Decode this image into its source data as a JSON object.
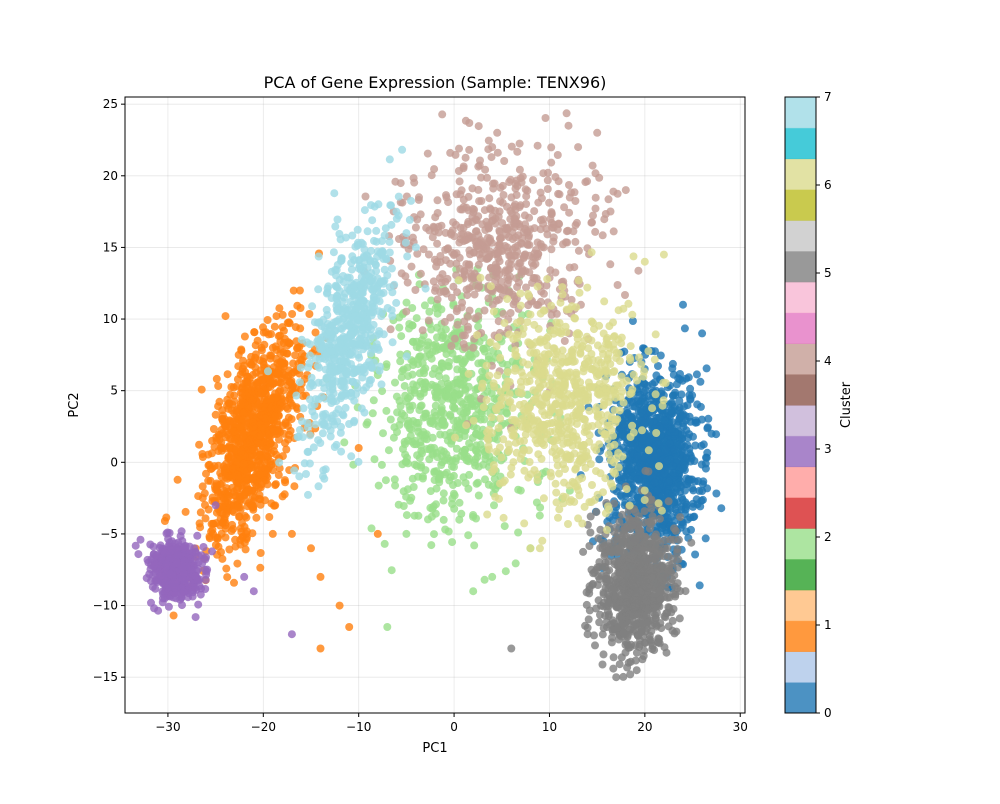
{
  "chart_data": {
    "type": "scatter",
    "title": "PCA of Gene Expression (Sample: TENX96)",
    "xlabel": "PC1",
    "ylabel": "PC2",
    "xlim": [
      -34.5,
      30.5
    ],
    "ylim": [
      -17.5,
      25.5
    ],
    "xticks": [
      -30,
      -20,
      -10,
      0,
      10,
      20,
      30
    ],
    "yticks": [
      -15,
      -10,
      -5,
      0,
      5,
      10,
      15,
      20,
      25
    ],
    "grid": true,
    "colorbar": {
      "label": "Cluster",
      "ticks": [
        0,
        1,
        2,
        3,
        4,
        5,
        6,
        7
      ],
      "colors": [
        "#1f77b4",
        "#aec7e8",
        "#ff7f0e",
        "#ffbb78",
        "#2ca02c",
        "#98df8a",
        "#d62728",
        "#ff9896",
        "#9467bd",
        "#c5b0d5",
        "#8c564b",
        "#c49c94",
        "#e377c2",
        "#f7b6d2",
        "#7f7f7f",
        "#c7c7c7",
        "#bcbd22",
        "#dbdb8d",
        "#17becf",
        "#9edae5"
      ]
    },
    "series": [
      {
        "cluster": 0,
        "color": "#1f77b4",
        "count": 1100,
        "center": [
          21,
          0
        ],
        "spread": [
          2.3,
          3.2
        ],
        "outliers": [
          [
            24,
            11
          ],
          [
            26,
            9
          ],
          [
            27,
            2
          ],
          [
            26,
            -2
          ],
          [
            16,
            -3
          ]
        ]
      },
      {
        "cluster": 1,
        "color": "#ff7f0e",
        "count": 1000,
        "center": [
          -21,
          2
        ],
        "spread": [
          2.6,
          3.0
        ],
        "outliers": [
          [
            -14,
            -8
          ],
          [
            -12,
            -10
          ],
          [
            -14,
            -13
          ],
          [
            -11,
            -11.5
          ],
          [
            -8,
            -5
          ],
          [
            -10,
            1
          ],
          [
            -17,
            -5
          ],
          [
            -15,
            -6
          ],
          [
            -19,
            -5
          ]
        ]
      },
      {
        "cluster": 2,
        "color": "#98df8a",
        "count": 700,
        "center": [
          0,
          4
        ],
        "spread": [
          4.2,
          4.0
        ],
        "outliers": [
          [
            -7,
            -11.5
          ],
          [
            8,
            -6
          ],
          [
            -5,
            -5
          ],
          [
            2,
            -9
          ],
          [
            4,
            -8
          ]
        ]
      },
      {
        "cluster": 3,
        "color": "#9467bd",
        "count": 500,
        "center": [
          -29,
          -7.5
        ],
        "spread": [
          1.3,
          1.0
        ],
        "outliers": [
          [
            -17,
            -12
          ],
          [
            -22,
            -8
          ],
          [
            -21,
            -9
          ],
          [
            -25,
            -3
          ]
        ]
      },
      {
        "cluster": 4,
        "color": "#c49c94",
        "count": 600,
        "center": [
          5,
          15
        ],
        "spread": [
          5.0,
          3.5
        ],
        "outliers": [
          [
            12,
            23.5
          ],
          [
            13,
            22
          ],
          [
            4,
            22
          ],
          [
            15,
            23
          ],
          [
            18,
            19
          ]
        ]
      },
      {
        "cluster": 5,
        "color": "#7f7f7f",
        "count": 900,
        "center": [
          19,
          -8.5
        ],
        "spread": [
          2.0,
          2.3
        ],
        "outliers": [
          [
            6,
            -13
          ],
          [
            17,
            -15
          ],
          [
            14,
            -12
          ]
        ]
      },
      {
        "cluster": 6,
        "color": "#dbdb8d",
        "count": 700,
        "center": [
          12,
          4
        ],
        "spread": [
          4.0,
          3.6
        ],
        "outliers": [
          [
            20,
            14
          ],
          [
            22,
            14.5
          ],
          [
            9,
            -6
          ],
          [
            8,
            -6
          ]
        ]
      },
      {
        "cluster": 7,
        "color": "#9edae5",
        "count": 600,
        "center": [
          -11,
          9
        ],
        "spread": [
          2.5,
          3.2
        ],
        "outliers": [
          [
            -6,
            17
          ],
          [
            -4,
            15
          ],
          [
            -5,
            16
          ]
        ]
      }
    ]
  }
}
